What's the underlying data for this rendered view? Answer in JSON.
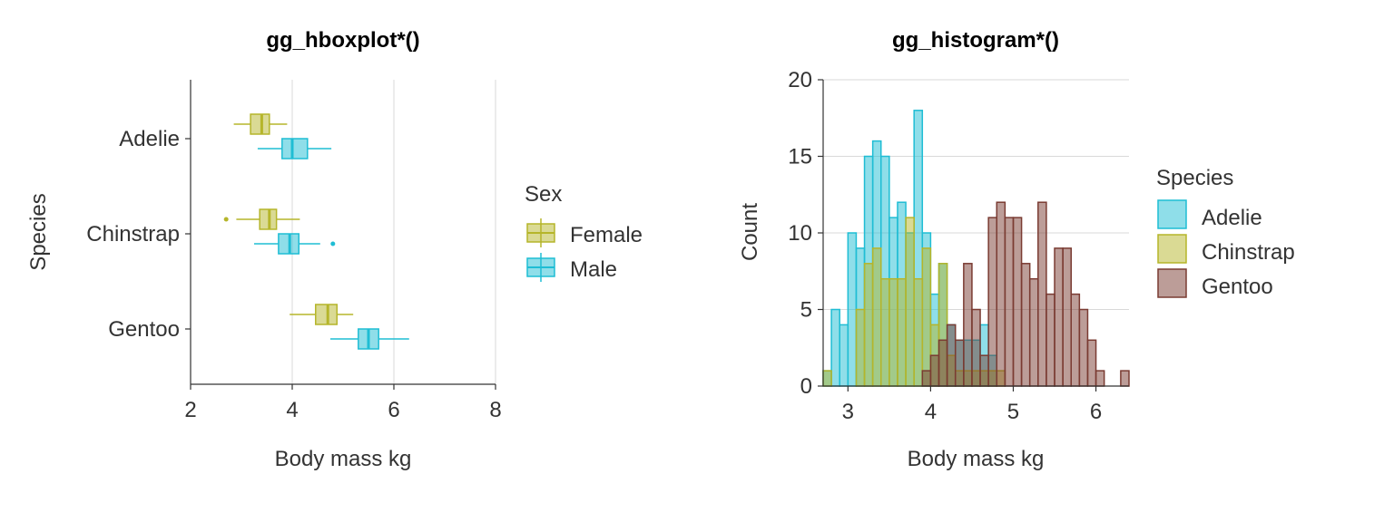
{
  "chart_data": [
    {
      "type": "boxplot",
      "orientation": "horizontal",
      "title": "gg_hboxplot*()",
      "xlabel": "Body mass kg",
      "ylabel": "Species",
      "xlim": [
        2,
        8
      ],
      "x_ticks": [
        2,
        4,
        6,
        8
      ],
      "categories": [
        "Adelie",
        "Chinstrap",
        "Gentoo"
      ],
      "grid": "vertical major gridlines",
      "legend": {
        "title": "Sex",
        "position": "right",
        "entries": [
          "Female",
          "Male"
        ]
      },
      "colors": {
        "Female": "#b5b52a",
        "Male": "#1fbdd4"
      },
      "series": [
        {
          "name": "Female",
          "boxes": [
            {
              "category": "Adelie",
              "min": 2.85,
              "q1": 3.18,
              "median": 3.4,
              "q3": 3.55,
              "max": 3.9,
              "outliers": []
            },
            {
              "category": "Chinstrap",
              "min": 2.9,
              "q1": 3.36,
              "median": 3.55,
              "q3": 3.69,
              "max": 4.15,
              "outliers": [
                2.7
              ]
            },
            {
              "category": "Gentoo",
              "min": 3.95,
              "q1": 4.46,
              "median": 4.7,
              "q3": 4.88,
              "max": 5.2,
              "outliers": []
            }
          ]
        },
        {
          "name": "Male",
          "boxes": [
            {
              "category": "Adelie",
              "min": 3.32,
              "q1": 3.8,
              "median": 4.0,
              "q3": 4.3,
              "max": 4.77,
              "outliers": []
            },
            {
              "category": "Chinstrap",
              "min": 3.25,
              "q1": 3.73,
              "median": 3.95,
              "q3": 4.13,
              "max": 4.55,
              "outliers": [
                4.8
              ]
            },
            {
              "category": "Gentoo",
              "min": 4.75,
              "q1": 5.3,
              "median": 5.5,
              "q3": 5.7,
              "max": 6.3,
              "outliers": []
            }
          ]
        }
      ]
    },
    {
      "type": "histogram",
      "title": "gg_histogram*()",
      "xlabel": "Body mass kg",
      "ylabel": "Count",
      "xlim": [
        2.7,
        6.4
      ],
      "ylim": [
        0,
        20
      ],
      "x_ticks": [
        3,
        4,
        5,
        6
      ],
      "y_ticks": [
        0,
        5,
        10,
        15,
        20
      ],
      "bin_width": 0.1,
      "grid": "horizontal major gridlines",
      "legend": {
        "title": "Species",
        "position": "right",
        "entries": [
          "Adelie",
          "Chinstrap",
          "Gentoo"
        ]
      },
      "colors": {
        "Adelie": "#1fbdd4",
        "Chinstrap": "#b5b52a",
        "Gentoo": "#7a3b32"
      },
      "series": [
        {
          "name": "Adelie",
          "x": [
            2.75,
            2.85,
            2.95,
            3.05,
            3.15,
            3.25,
            3.35,
            3.45,
            3.55,
            3.65,
            3.75,
            3.85,
            3.95,
            4.05,
            4.15,
            4.25,
            4.35,
            4.45,
            4.55,
            4.65,
            4.75
          ],
          "counts": [
            1,
            5,
            4,
            10,
            9,
            15,
            16,
            15,
            11,
            12,
            10,
            18,
            10,
            6,
            8,
            4,
            3,
            3,
            3,
            4,
            2
          ]
        },
        {
          "name": "Chinstrap",
          "x": [
            2.65,
            2.75,
            3.15,
            3.25,
            3.35,
            3.45,
            3.55,
            3.65,
            3.75,
            3.85,
            3.95,
            4.05,
            4.15,
            4.25,
            4.35,
            4.45,
            4.55,
            4.65,
            4.75,
            4.85
          ],
          "counts": [
            1,
            1,
            5,
            8,
            9,
            7,
            7,
            7,
            11,
            7,
            9,
            4,
            8,
            2,
            1,
            1,
            1,
            1,
            1,
            1
          ]
        },
        {
          "name": "Gentoo",
          "x": [
            3.95,
            4.05,
            4.15,
            4.25,
            4.35,
            4.45,
            4.55,
            4.65,
            4.75,
            4.85,
            4.95,
            5.05,
            5.15,
            5.25,
            5.35,
            5.45,
            5.55,
            5.65,
            5.75,
            5.85,
            5.95,
            6.05,
            6.35
          ],
          "counts": [
            1,
            2,
            3,
            4,
            3,
            8,
            5,
            2,
            11,
            12,
            11,
            11,
            8,
            7,
            12,
            6,
            9,
            9,
            6,
            5,
            3,
            1,
            1
          ]
        }
      ]
    }
  ]
}
